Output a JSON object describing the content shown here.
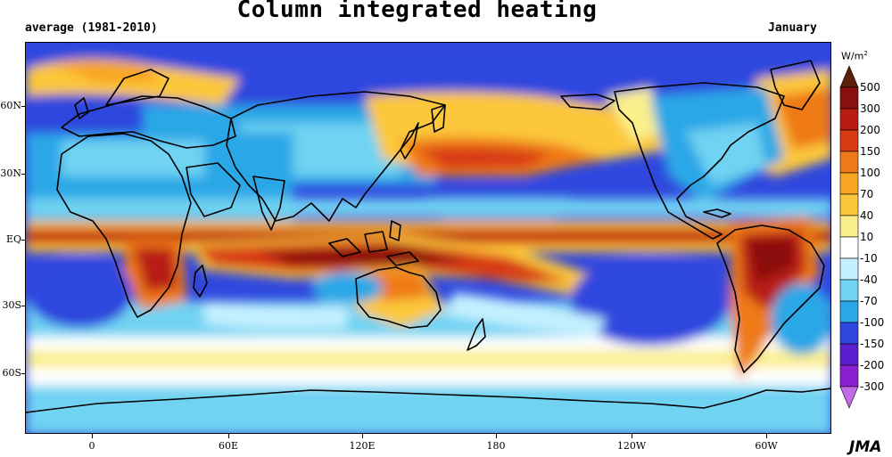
{
  "title": "Column integrated heating",
  "subtitle_left": "average (1981-2010)",
  "subtitle_right": "January",
  "units": {
    "base": "W/m",
    "exp": "2"
  },
  "credit": "JMA",
  "lat_labels": [
    "60N",
    "30N",
    "EQ",
    "30S",
    "60S"
  ],
  "lon_labels": [
    "0",
    "60E",
    "120E",
    "180",
    "120W",
    "60W"
  ],
  "colorbar": {
    "labels": [
      "500",
      "300",
      "200",
      "150",
      "100",
      "70",
      "40",
      "10",
      "-10",
      "-40",
      "-70",
      "-100",
      "-150",
      "-200",
      "-300"
    ],
    "colors": {
      "above_500": "#5c1f0a",
      "300_500": "#8a0f0f",
      "200_300": "#b81c12",
      "150_200": "#d83a12",
      "100_150": "#ef7a18",
      "70_100": "#f8a624",
      "40_70": "#fcc73a",
      "10_40": "#fbef8c",
      "m10_10": "#ffffff",
      "m40_m10": "#c4f0ff",
      "m70_m40": "#6fd3f2",
      "m100_m70": "#2aa7e6",
      "m150_m100": "#2f47de",
      "m200_m150": "#5b1fd0",
      "m300_m200": "#8c1fd4",
      "below_m300": "#c46ae8"
    }
  }
}
